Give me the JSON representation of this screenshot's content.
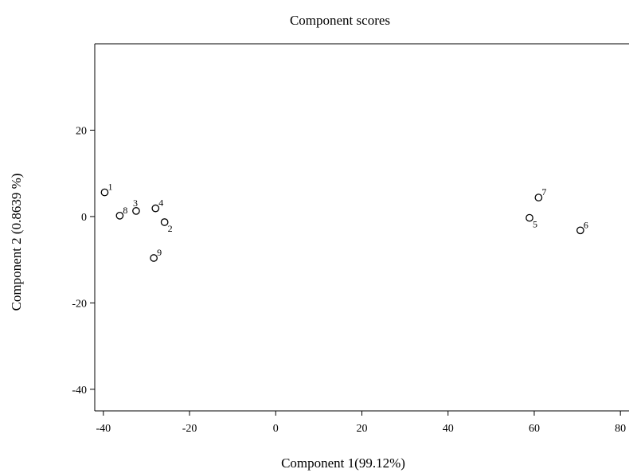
{
  "chart_data": {
    "type": "scatter",
    "title": "Component scores",
    "xlabel": "Component 1(99.12%)",
    "ylabel": "Component 2 (0.8639 %)",
    "xlim": [
      -42,
      82
    ],
    "ylim": [
      -45,
      40
    ],
    "xticks": [
      -40,
      -20,
      0,
      20,
      40,
      60,
      80
    ],
    "yticks": [
      -40,
      -20,
      0,
      20
    ],
    "xtick_labels": [
      "-40",
      "-20",
      "0",
      "20",
      "40",
      "60",
      "80"
    ],
    "ytick_labels": [
      "-40",
      "-20",
      "0",
      "20"
    ],
    "grid": false,
    "marker": "open-circle",
    "points": [
      {
        "label": "1",
        "x": -39.7,
        "y": 5.6
      },
      {
        "label": "2",
        "x": -25.8,
        "y": -1.3
      },
      {
        "label": "3",
        "x": -32.4,
        "y": 1.3
      },
      {
        "label": "4",
        "x": -27.9,
        "y": 1.9
      },
      {
        "label": "5",
        "x": 58.9,
        "y": -0.3
      },
      {
        "label": "6",
        "x": 70.7,
        "y": -3.2
      },
      {
        "label": "7",
        "x": 61.0,
        "y": 4.4
      },
      {
        "label": "8",
        "x": -36.2,
        "y": 0.2
      },
      {
        "label": "9",
        "x": -28.3,
        "y": -9.6
      }
    ]
  }
}
